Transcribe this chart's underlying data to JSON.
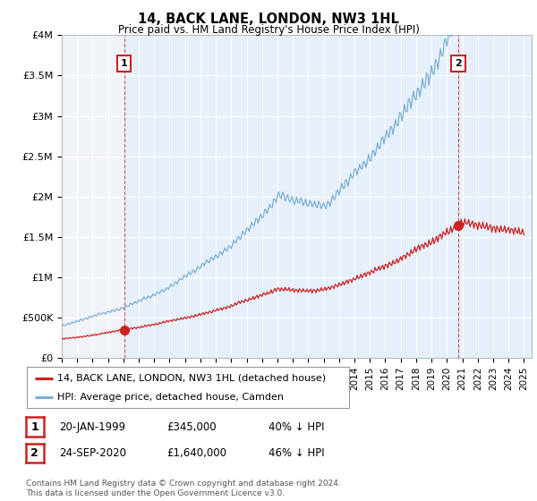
{
  "title": "14, BACK LANE, LONDON, NW3 1HL",
  "subtitle": "Price paid vs. HM Land Registry's House Price Index (HPI)",
  "ylim": [
    0,
    4000000
  ],
  "yticks": [
    0,
    500000,
    1000000,
    1500000,
    2000000,
    2500000,
    3000000,
    3500000,
    4000000
  ],
  "ytick_labels": [
    "£0",
    "£500K",
    "£1M",
    "£1.5M",
    "£2M",
    "£2.5M",
    "£3M",
    "£3.5M",
    "£4M"
  ],
  "xlim_start": 1995.0,
  "xlim_end": 2025.5,
  "hpi_color": "#7bafd4",
  "price_color": "#cc2222",
  "bg_fill_color": "#ddeeff",
  "marker1_year": 1999.05,
  "marker1_price": 345000,
  "marker2_year": 2020.73,
  "marker2_price": 1640000,
  "legend_line1": "14, BACK LANE, LONDON, NW3 1HL (detached house)",
  "legend_line2": "HPI: Average price, detached house, Camden",
  "ann1_date": "20-JAN-1999",
  "ann1_price": "£345,000",
  "ann1_hpi": "40% ↓ HPI",
  "ann2_date": "24-SEP-2020",
  "ann2_price": "£1,640,000",
  "ann2_hpi": "46% ↓ HPI",
  "footer": "Contains HM Land Registry data © Crown copyright and database right 2024.\nThis data is licensed under the Open Government Licence v3.0."
}
